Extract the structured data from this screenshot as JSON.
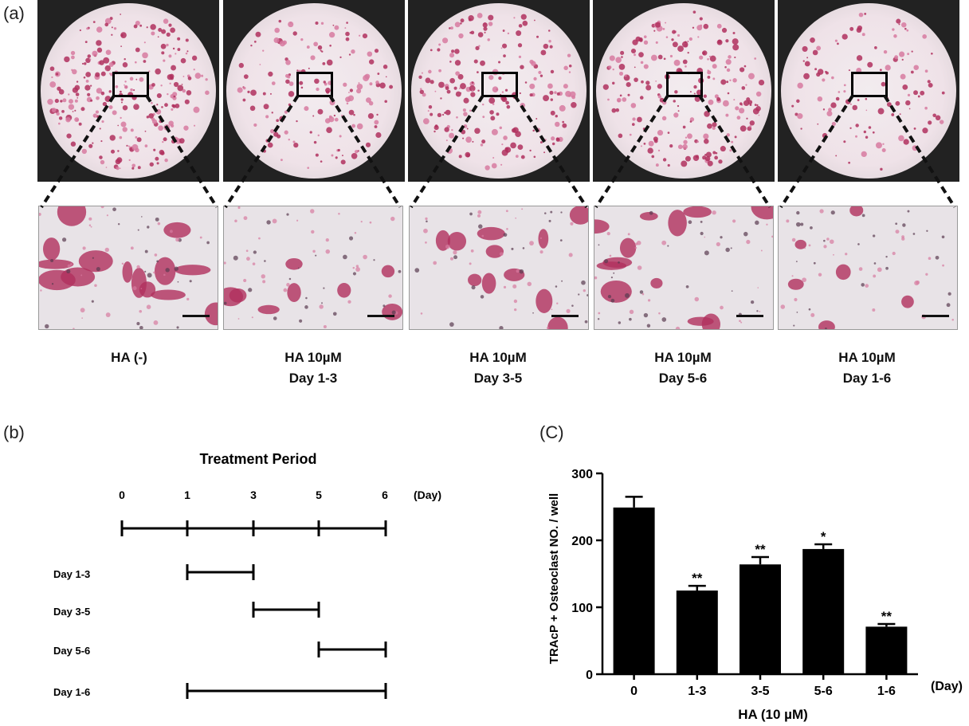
{
  "panel_labels": {
    "a": "(a)",
    "b": "(b)",
    "c": "(C)"
  },
  "groups": [
    {
      "line1": "HA (-)",
      "line2": ""
    },
    {
      "line1": "HA 10µM",
      "line2": "Day 1-3"
    },
    {
      "line1": "HA 10µM",
      "line2": "Day 3-5"
    },
    {
      "line1": "HA 10µM",
      "line2": "Day 5-6"
    },
    {
      "line1": "HA 10µM",
      "line2": "Day 1-6"
    }
  ],
  "timeline": {
    "title": "Treatment Period",
    "ticks": [
      "0",
      "1",
      "3",
      "5",
      "6"
    ],
    "unit": "(Day)",
    "rows": [
      {
        "label": "Day 1-3",
        "start": 1,
        "end": 3
      },
      {
        "label": "Day 3-5",
        "start": 3,
        "end": 5
      },
      {
        "label": "Day 5-6",
        "start": 5,
        "end": 6
      },
      {
        "label": "Day 1-6",
        "start": 1,
        "end": 6
      }
    ]
  },
  "chart_data": {
    "type": "bar",
    "categories": [
      "0",
      "1-3",
      "3-5",
      "5-6",
      "1-6"
    ],
    "values": [
      249,
      125,
      164,
      187,
      71
    ],
    "errors": [
      16,
      7,
      11,
      7,
      4
    ],
    "significance": [
      "",
      "**",
      "**",
      "*",
      "**"
    ],
    "ylabel": "TRAcP + Osteoclast NO. / well",
    "xlabel": "HA (10 µM)",
    "x_unit": "(Day)",
    "ylim": [
      0,
      300
    ],
    "yticks": [
      "0",
      "100",
      "200",
      "300"
    ],
    "bar_color": "#000000"
  },
  "colors": {
    "stain": "#b0305e",
    "stain_light": "#d77aa0",
    "background": "#ece6ea"
  }
}
